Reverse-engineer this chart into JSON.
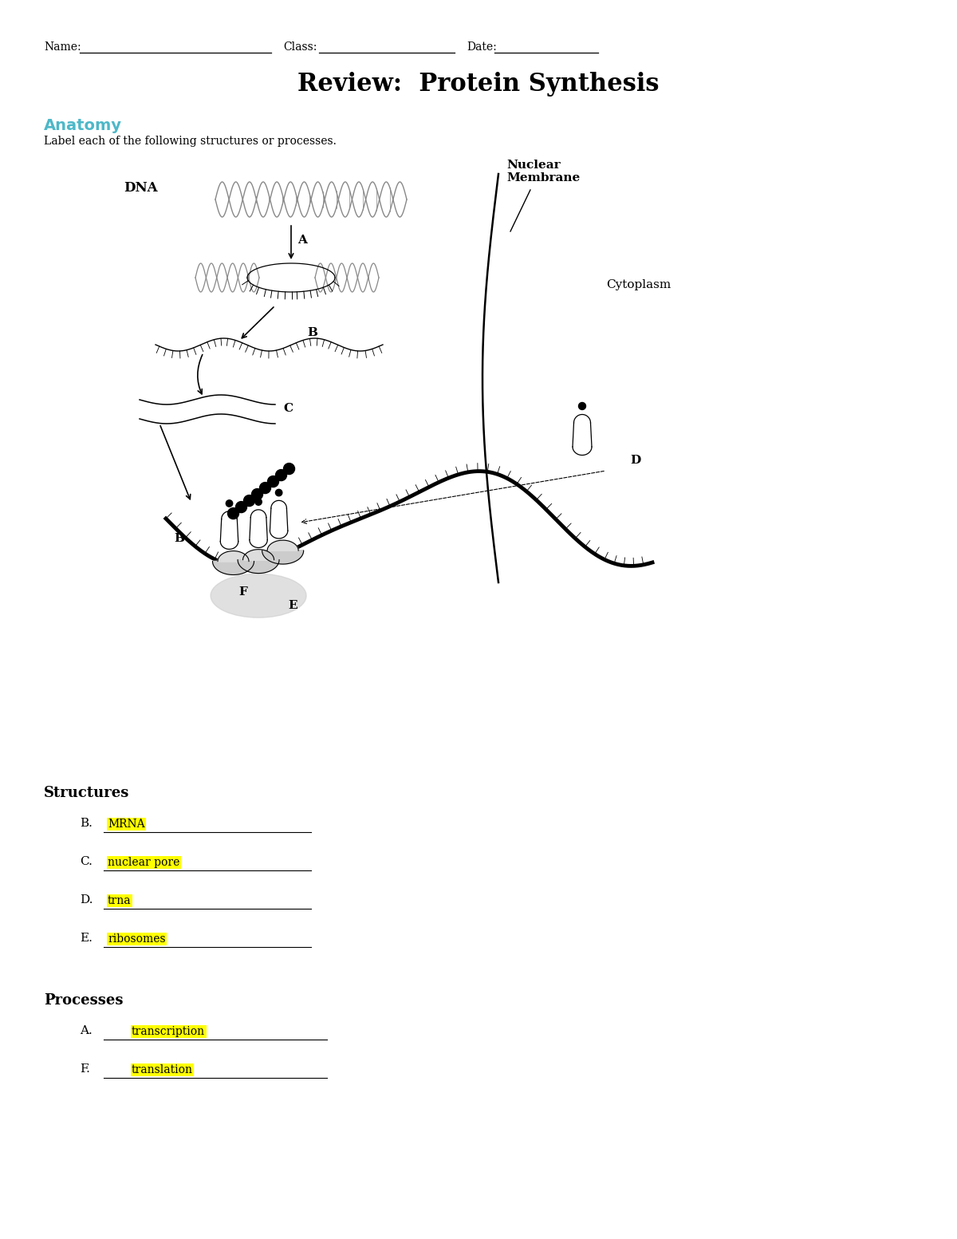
{
  "bg_color": "#ffffff",
  "title": "Review:  Protein Synthesis",
  "title_fontsize": 22,
  "anatomy_label": "Anatomy",
  "anatomy_color": "#4db8c8",
  "anatomy_sub": "Label each of the following structures or processes.",
  "nuclear_membrane_text": "Nuclear\nMembrane",
  "cytoplasm_text": "Cytoplasm",
  "dna_text": "DNA",
  "label_A": "A",
  "label_B": "B",
  "label_C": "C",
  "label_D": "D",
  "label_E": "E",
  "label_F": "F",
  "structures_title": "Structures",
  "struct_B_answer": "MRNA",
  "struct_C_answer": "nuclear pore",
  "struct_D_answer": "trna",
  "struct_E_answer": "ribosomes",
  "processes_title": "Processes",
  "proc_A_answer": "transcription",
  "proc_F_answer": "translation"
}
